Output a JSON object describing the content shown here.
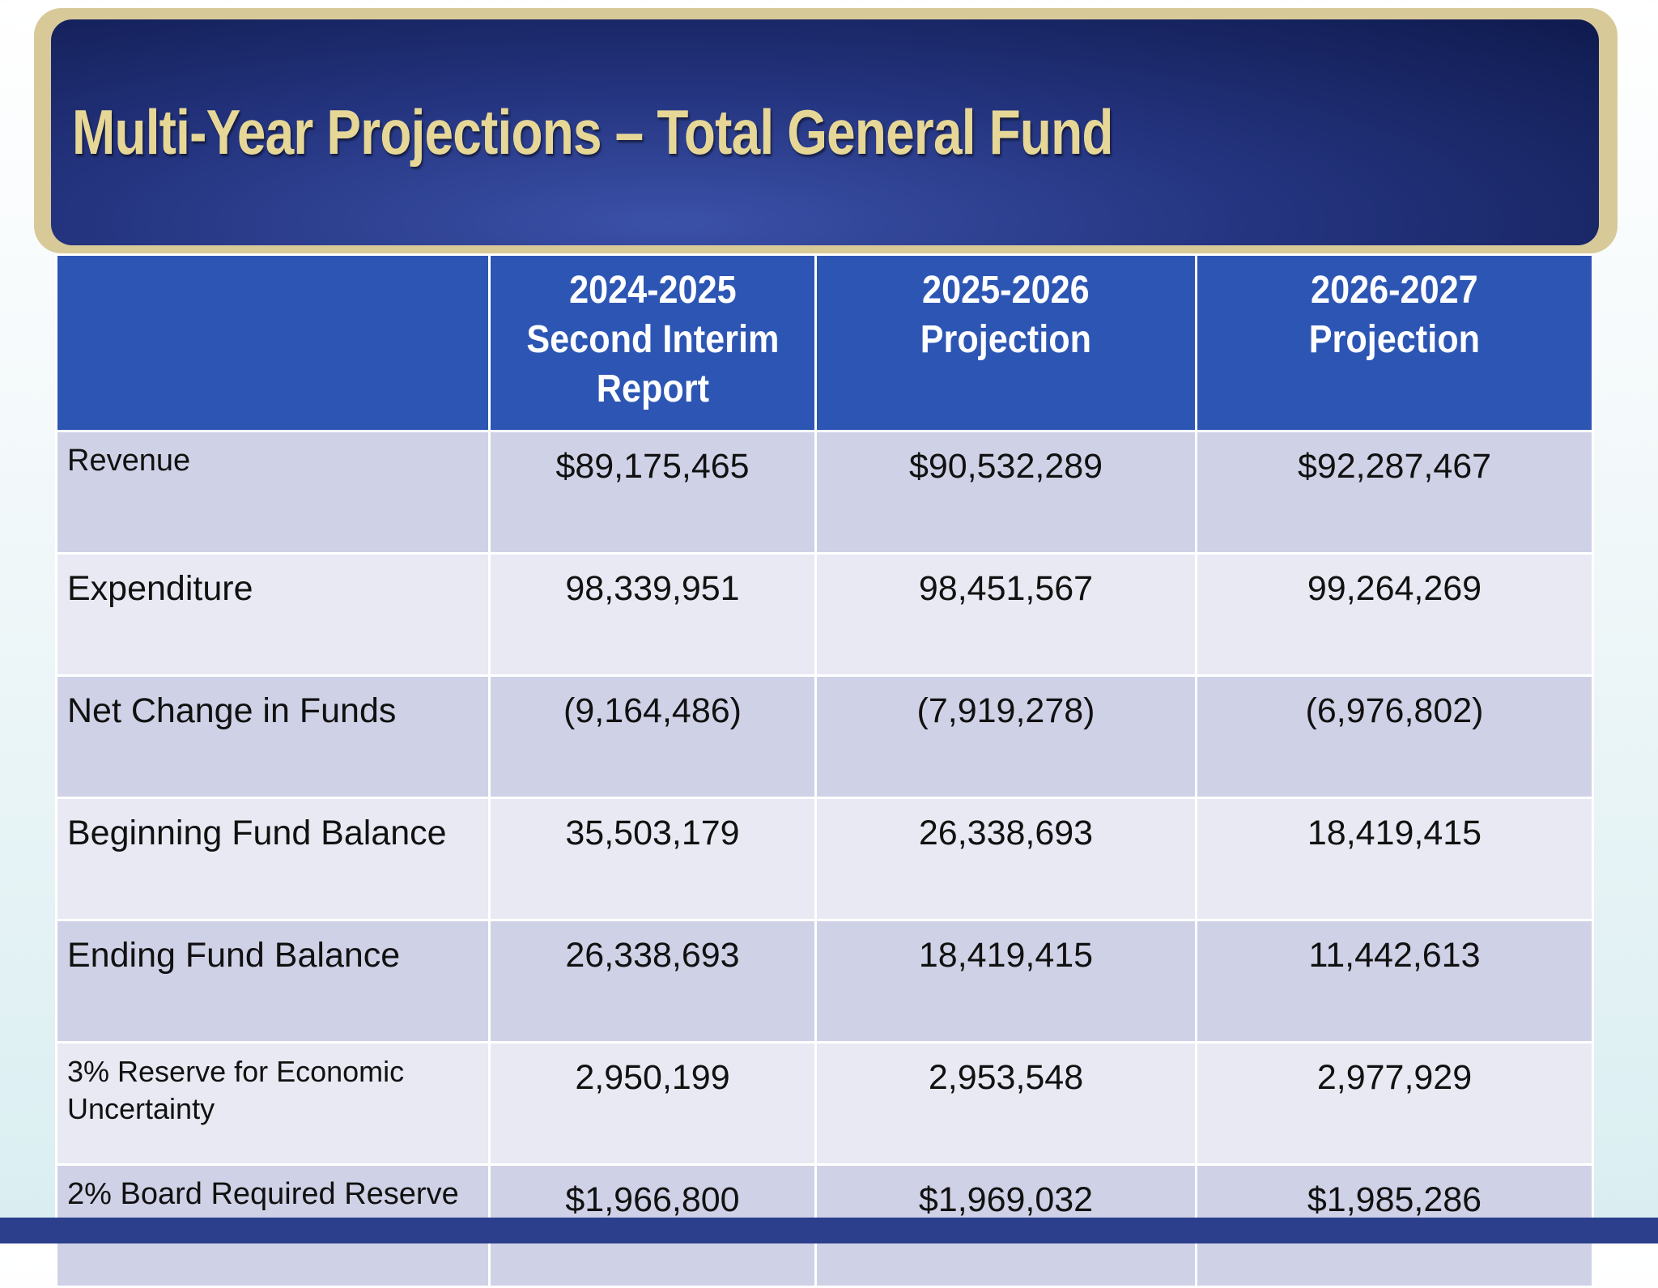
{
  "title": "Multi-Year Projections – Total General Fund",
  "table": {
    "headers": [
      "",
      "2024-2025\nSecond Interim\nReport",
      "2025-2026\nProjection",
      "2026-2027\nProjection"
    ],
    "header_lines": [
      [],
      [
        "2024-2025",
        "Second Interim",
        "Report"
      ],
      [
        "2025-2026",
        "Projection"
      ],
      [
        "2026-2027",
        "Projection"
      ]
    ],
    "rows": [
      {
        "label": "Revenue",
        "values": [
          "$89,175,465",
          "$90,532,289",
          "$92,287,467"
        ]
      },
      {
        "label": "Expenditure",
        "values": [
          "98,339,951",
          "98,451,567",
          "99,264,269"
        ]
      },
      {
        "label": "Net Change in Funds",
        "values": [
          "(9,164,486)",
          "(7,919,278)",
          "(6,976,802)"
        ]
      },
      {
        "label": "Beginning Fund Balance",
        "values": [
          "35,503,179",
          "26,338,693",
          "18,419,415"
        ]
      },
      {
        "label": "Ending Fund Balance",
        "values": [
          "26,338,693",
          "18,419,415",
          "11,442,613"
        ]
      },
      {
        "label": "3% Reserve for Economic Uncertainty",
        "values": [
          "2,950,199",
          "2,953,548",
          "2,977,929"
        ]
      },
      {
        "label": "2% Board Required Reserve",
        "values": [
          "$1,966,800",
          "$1,969,032",
          "$1,985,286"
        ]
      }
    ]
  },
  "colors": {
    "header": "#2d56b4",
    "title": "#e6d797",
    "banner": "#1c2a6e",
    "frame": "#d8c999"
  }
}
